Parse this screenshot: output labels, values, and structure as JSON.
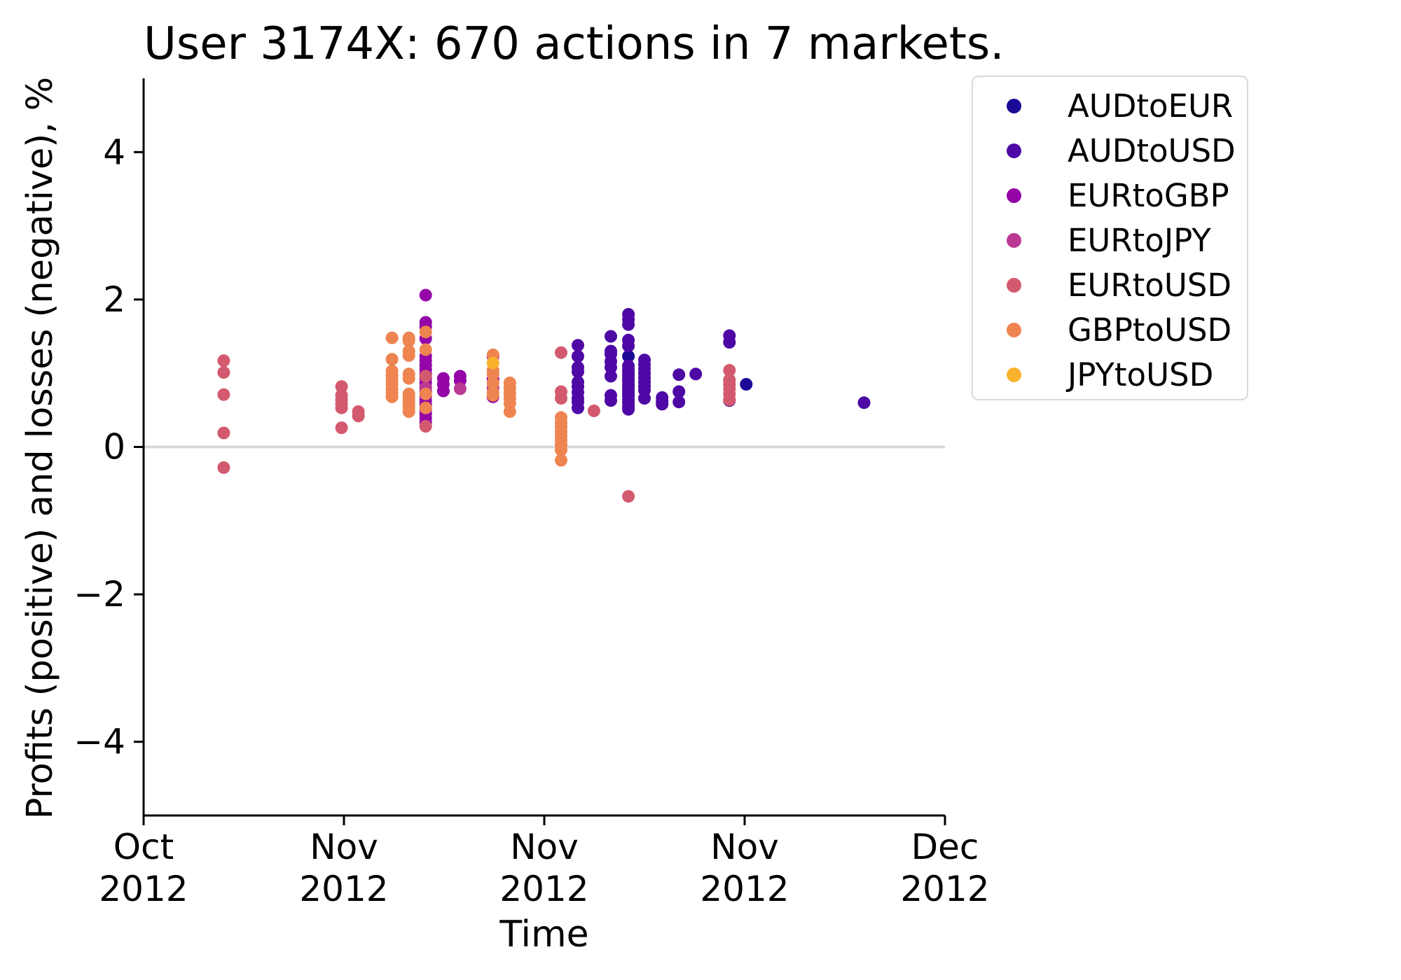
{
  "chart_data": {
    "type": "scatter",
    "title": "User 3174X: 670 actions in 7 markets.",
    "xlabel": "Time",
    "ylabel": "Profits (positive) and losses (negative), %",
    "ylim": [
      -5,
      5
    ],
    "grid": false,
    "zero_line": {
      "value": 0,
      "color": "#d9d9d9"
    },
    "legend_position": "upper right",
    "x_ticks": [
      {
        "frac": 0.0,
        "line1": "Oct",
        "line2": "2012"
      },
      {
        "frac": 0.25,
        "line1": "Nov",
        "line2": "2012"
      },
      {
        "frac": 0.5,
        "line1": "Nov",
        "line2": "2012"
      },
      {
        "frac": 0.75,
        "line1": "Nov",
        "line2": "2012"
      },
      {
        "frac": 1.0,
        "line1": "Dec",
        "line2": "2012"
      }
    ],
    "y_ticks": [
      {
        "value": 4,
        "label": "4"
      },
      {
        "value": 2,
        "label": "2"
      },
      {
        "value": 0,
        "label": "0"
      },
      {
        "value": -2,
        "label": "−2"
      },
      {
        "value": -4,
        "label": "−4"
      }
    ],
    "series": [
      {
        "name": "AUDtoEUR",
        "color": "#1a0a96",
        "points": [
          [
            0.605,
            1.23
          ],
          [
            0.752,
            0.85
          ]
        ]
      },
      {
        "name": "AUDtoUSD",
        "color": "#4e08a5",
        "points": [
          [
            0.542,
            1.38
          ],
          [
            0.542,
            1.23
          ],
          [
            0.542,
            1.08
          ],
          [
            0.542,
            1.02
          ],
          [
            0.542,
            0.88
          ],
          [
            0.542,
            0.82
          ],
          [
            0.542,
            0.74
          ],
          [
            0.542,
            0.66
          ],
          [
            0.542,
            0.61
          ],
          [
            0.542,
            0.53
          ],
          [
            0.583,
            1.5
          ],
          [
            0.583,
            1.3
          ],
          [
            0.583,
            1.26
          ],
          [
            0.583,
            1.16
          ],
          [
            0.583,
            1.08
          ],
          [
            0.583,
            0.96
          ],
          [
            0.583,
            0.7
          ],
          [
            0.583,
            0.63
          ],
          [
            0.605,
            1.8
          ],
          [
            0.605,
            1.73
          ],
          [
            0.605,
            1.66
          ],
          [
            0.605,
            1.45
          ],
          [
            0.605,
            1.37
          ],
          [
            0.605,
            1.1
          ],
          [
            0.605,
            1.05
          ],
          [
            0.605,
            1.01
          ],
          [
            0.605,
            0.97
          ],
          [
            0.605,
            0.93
          ],
          [
            0.605,
            0.89
          ],
          [
            0.605,
            0.85
          ],
          [
            0.605,
            0.81
          ],
          [
            0.605,
            0.77
          ],
          [
            0.605,
            0.73
          ],
          [
            0.605,
            0.69
          ],
          [
            0.605,
            0.64
          ],
          [
            0.605,
            0.6
          ],
          [
            0.605,
            0.55
          ],
          [
            0.605,
            0.51
          ],
          [
            0.625,
            1.18
          ],
          [
            0.625,
            1.12
          ],
          [
            0.625,
            1.06
          ],
          [
            0.625,
            1.0
          ],
          [
            0.625,
            0.94
          ],
          [
            0.625,
            0.88
          ],
          [
            0.625,
            0.82
          ],
          [
            0.625,
            0.77
          ],
          [
            0.625,
            0.66
          ],
          [
            0.647,
            0.67
          ],
          [
            0.647,
            0.62
          ],
          [
            0.647,
            0.58
          ],
          [
            0.668,
            0.98
          ],
          [
            0.668,
            0.75
          ],
          [
            0.668,
            0.61
          ],
          [
            0.689,
            0.99
          ],
          [
            0.731,
            1.51
          ],
          [
            0.731,
            1.42
          ],
          [
            0.731,
            0.63
          ],
          [
            0.899,
            0.6
          ]
        ]
      },
      {
        "name": "EURtoGBP",
        "color": "#9406a8",
        "points": [
          [
            0.352,
            2.06
          ],
          [
            0.352,
            1.69
          ],
          [
            0.352,
            1.63
          ],
          [
            0.352,
            1.47
          ],
          [
            0.352,
            1.23
          ],
          [
            0.352,
            1.17
          ],
          [
            0.352,
            1.11
          ],
          [
            0.352,
            1.05
          ],
          [
            0.352,
            0.99
          ],
          [
            0.352,
            0.93
          ],
          [
            0.352,
            0.87
          ],
          [
            0.352,
            0.81
          ],
          [
            0.352,
            0.75
          ],
          [
            0.352,
            0.69
          ],
          [
            0.352,
            0.63
          ],
          [
            0.352,
            0.57
          ],
          [
            0.352,
            0.51
          ],
          [
            0.352,
            0.45
          ],
          [
            0.352,
            0.39
          ],
          [
            0.352,
            0.33
          ],
          [
            0.374,
            0.93
          ],
          [
            0.374,
            0.85
          ],
          [
            0.374,
            0.76
          ],
          [
            0.395,
            0.96
          ],
          [
            0.395,
            0.9
          ],
          [
            0.436,
            1.23
          ],
          [
            0.436,
            0.92
          ],
          [
            0.436,
            0.68
          ]
        ]
      },
      {
        "name": "EURtoJPY",
        "color": "#b93993",
        "points": [
          [
            0.352,
            0.8
          ],
          [
            0.395,
            0.79
          ],
          [
            0.436,
            0.8
          ]
        ]
      },
      {
        "name": "EURtoUSD",
        "color": "#d35a6e",
        "points": [
          [
            0.1,
            1.17
          ],
          [
            0.1,
            1.01
          ],
          [
            0.1,
            0.71
          ],
          [
            0.1,
            0.19
          ],
          [
            0.1,
            -0.28
          ],
          [
            0.247,
            0.82
          ],
          [
            0.247,
            0.7
          ],
          [
            0.247,
            0.64
          ],
          [
            0.247,
            0.58
          ],
          [
            0.247,
            0.53
          ],
          [
            0.247,
            0.26
          ],
          [
            0.268,
            0.48
          ],
          [
            0.268,
            0.42
          ],
          [
            0.352,
            0.96
          ],
          [
            0.352,
            0.28
          ],
          [
            0.521,
            1.28
          ],
          [
            0.521,
            0.75
          ],
          [
            0.521,
            0.66
          ],
          [
            0.562,
            0.49
          ],
          [
            0.605,
            -0.67
          ],
          [
            0.731,
            1.04
          ],
          [
            0.731,
            0.91
          ],
          [
            0.731,
            0.85
          ],
          [
            0.731,
            0.79
          ],
          [
            0.731,
            0.72
          ],
          [
            0.731,
            0.64
          ]
        ]
      },
      {
        "name": "GBPtoUSD",
        "color": "#ee8450",
        "points": [
          [
            0.31,
            1.48
          ],
          [
            0.31,
            1.19
          ],
          [
            0.31,
            1.03
          ],
          [
            0.31,
            0.97
          ],
          [
            0.31,
            0.91
          ],
          [
            0.31,
            0.85
          ],
          [
            0.31,
            0.79
          ],
          [
            0.31,
            0.73
          ],
          [
            0.31,
            0.68
          ],
          [
            0.331,
            1.48
          ],
          [
            0.331,
            1.44
          ],
          [
            0.331,
            1.3
          ],
          [
            0.331,
            1.24
          ],
          [
            0.331,
            0.99
          ],
          [
            0.331,
            0.93
          ],
          [
            0.331,
            0.72
          ],
          [
            0.331,
            0.68
          ],
          [
            0.331,
            0.63
          ],
          [
            0.331,
            0.58
          ],
          [
            0.331,
            0.53
          ],
          [
            0.331,
            0.48
          ],
          [
            0.352,
            1.56
          ],
          [
            0.352,
            1.32
          ],
          [
            0.352,
            0.72
          ],
          [
            0.352,
            0.53
          ],
          [
            0.436,
            1.25
          ],
          [
            0.436,
            1.04
          ],
          [
            0.436,
            0.99
          ],
          [
            0.436,
            0.87
          ],
          [
            0.436,
            0.74
          ],
          [
            0.436,
            0.7
          ],
          [
            0.457,
            0.87
          ],
          [
            0.457,
            0.8
          ],
          [
            0.457,
            0.73
          ],
          [
            0.457,
            0.66
          ],
          [
            0.457,
            0.59
          ],
          [
            0.457,
            0.48
          ],
          [
            0.521,
            0.4
          ],
          [
            0.521,
            0.33
          ],
          [
            0.521,
            0.27
          ],
          [
            0.521,
            0.21
          ],
          [
            0.521,
            0.15
          ],
          [
            0.521,
            0.09
          ],
          [
            0.521,
            0.03
          ],
          [
            0.521,
            -0.04
          ],
          [
            0.521,
            -0.18
          ]
        ]
      },
      {
        "name": "JPYtoUSD",
        "color": "#f8b22e",
        "points": [
          [
            0.436,
            1.14
          ]
        ]
      }
    ]
  }
}
